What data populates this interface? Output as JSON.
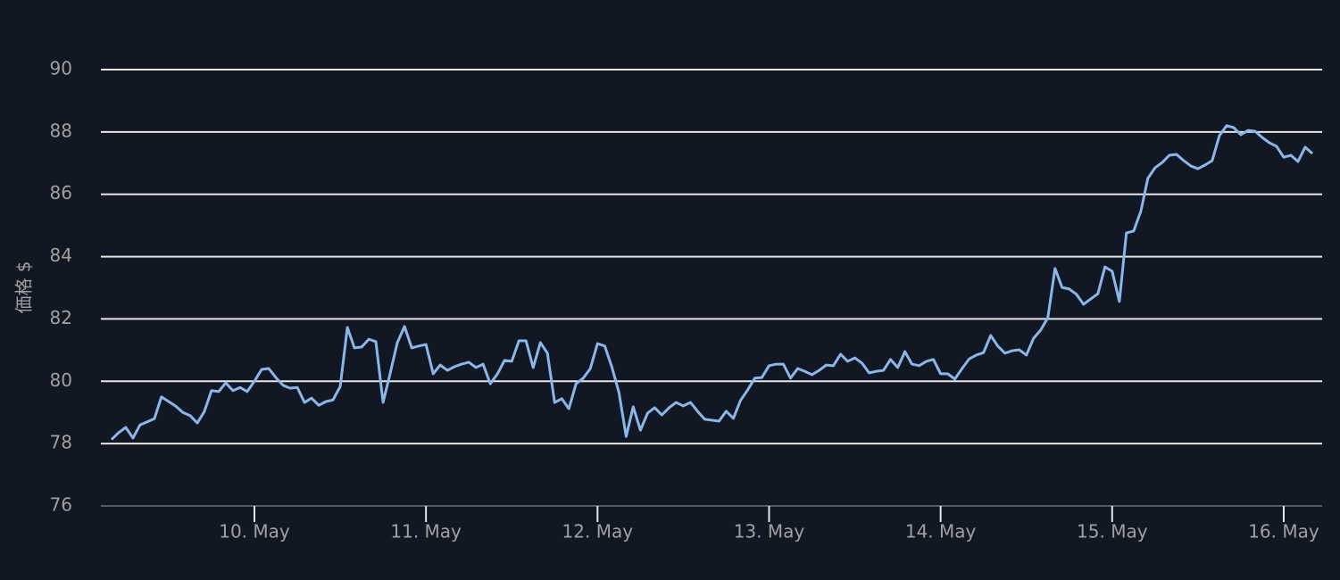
{
  "chart_data": {
    "type": "line",
    "y_label": "価格 $",
    "x": [
      9.167,
      9.208,
      9.25,
      9.292,
      9.333,
      9.375,
      9.417,
      9.458,
      9.5,
      9.542,
      9.583,
      9.625,
      9.667,
      9.708,
      9.75,
      9.792,
      9.833,
      9.875,
      9.917,
      9.958,
      10,
      10.042,
      10.083,
      10.125,
      10.167,
      10.208,
      10.25,
      10.292,
      10.333,
      10.375,
      10.417,
      10.458,
      10.5,
      10.542,
      10.583,
      10.625,
      10.667,
      10.708,
      10.75,
      10.792,
      10.833,
      10.875,
      10.917,
      10.958,
      11,
      11.042,
      11.083,
      11.125,
      11.167,
      11.208,
      11.25,
      11.292,
      11.333,
      11.375,
      11.417,
      11.458,
      11.5,
      11.542,
      11.583,
      11.625,
      11.667,
      11.708,
      11.75,
      11.792,
      11.833,
      11.875,
      11.917,
      11.958,
      12,
      12.042,
      12.083,
      12.125,
      12.167,
      12.208,
      12.25,
      12.292,
      12.333,
      12.375,
      12.417,
      12.458,
      12.5,
      12.542,
      12.583,
      12.625,
      12.667,
      12.708,
      12.75,
      12.792,
      12.833,
      12.875,
      12.917,
      12.958,
      13,
      13.042,
      13.083,
      13.125,
      13.167,
      13.208,
      13.25,
      13.292,
      13.333,
      13.375,
      13.417,
      13.458,
      13.5,
      13.542,
      13.583,
      13.625,
      13.667,
      13.708,
      13.75,
      13.792,
      13.833,
      13.875,
      13.917,
      13.958,
      14,
      14.042,
      14.083,
      14.125,
      14.167,
      14.208,
      14.25,
      14.292,
      14.333,
      14.375,
      14.417,
      14.458,
      14.5,
      14.542,
      14.583,
      14.625,
      14.667,
      14.708,
      14.75,
      14.792,
      14.833,
      14.875,
      14.917,
      14.958,
      15,
      15.042,
      15.083,
      15.125,
      15.167,
      15.208,
      15.25,
      15.292,
      15.333,
      15.375,
      15.417,
      15.458,
      15.5,
      15.542,
      15.583,
      15.625,
      15.667,
      15.708,
      15.75,
      15.792,
      15.833,
      15.875,
      15.917,
      15.958,
      16,
      16.042,
      16.083,
      16.125,
      16.167
    ],
    "series": [
      {
        "color": "#8ab6e8",
        "values": [
          78.13,
          78.35,
          78.52,
          78.18,
          78.6,
          78.7,
          78.8,
          79.5,
          79.35,
          79.2,
          79.0,
          78.9,
          78.66,
          79.03,
          79.7,
          79.67,
          79.95,
          79.7,
          79.8,
          79.67,
          80.0,
          80.38,
          80.41,
          80.12,
          79.87,
          79.78,
          79.8,
          79.32,
          79.46,
          79.23,
          79.35,
          79.4,
          79.83,
          81.73,
          81.07,
          81.1,
          81.35,
          81.27,
          79.32,
          80.27,
          81.24,
          81.76,
          81.07,
          81.13,
          81.18,
          80.24,
          80.52,
          80.35,
          80.47,
          80.55,
          80.61,
          80.44,
          80.55,
          79.92,
          80.24,
          80.67,
          80.64,
          81.3,
          81.3,
          80.44,
          81.24,
          80.9,
          79.32,
          79.44,
          79.12,
          79.92,
          80.1,
          80.41,
          81.21,
          81.13,
          80.47,
          79.64,
          78.23,
          79.18,
          78.43,
          78.98,
          79.15,
          78.92,
          79.15,
          79.32,
          79.21,
          79.32,
          79.04,
          78.78,
          78.75,
          78.72,
          79.04,
          78.81,
          79.38,
          79.72,
          80.1,
          80.12,
          80.5,
          80.55,
          80.55,
          80.1,
          80.41,
          80.32,
          80.21,
          80.35,
          80.52,
          80.5,
          80.87,
          80.64,
          80.75,
          80.58,
          80.27,
          80.32,
          80.35,
          80.7,
          80.44,
          80.95,
          80.55,
          80.5,
          80.64,
          80.7,
          80.24,
          80.24,
          80.07,
          80.41,
          80.72,
          80.84,
          80.92,
          81.47,
          81.13,
          80.9,
          80.98,
          81.01,
          80.84,
          81.38,
          81.64,
          82.04,
          83.62,
          83.01,
          82.96,
          82.79,
          82.47,
          82.64,
          82.81,
          83.67,
          83.53,
          82.56,
          84.76,
          84.82,
          85.45,
          86.51,
          86.85,
          87.02,
          87.25,
          87.28,
          87.08,
          86.91,
          86.82,
          86.94,
          87.08,
          87.88,
          88.2,
          88.14,
          87.91,
          88.05,
          88.02,
          87.82,
          87.65,
          87.54,
          87.19,
          87.25,
          87.05,
          87.51,
          87.31
        ]
      }
    ],
    "xlim": [
      9.105,
      16.224
    ],
    "xticks": [
      {
        "value": 10,
        "label": "10. May"
      },
      {
        "value": 11,
        "label": "11. May"
      },
      {
        "value": 12,
        "label": "12. May"
      },
      {
        "value": 13,
        "label": "13. May"
      },
      {
        "value": 14,
        "label": "14. May"
      },
      {
        "value": 15,
        "label": "15. May"
      },
      {
        "value": 16,
        "label": "16. May"
      }
    ],
    "ylim": [
      76,
      90
    ],
    "yticks": [
      76,
      78,
      80,
      82,
      84,
      86,
      88,
      90
    ],
    "grid": true
  }
}
